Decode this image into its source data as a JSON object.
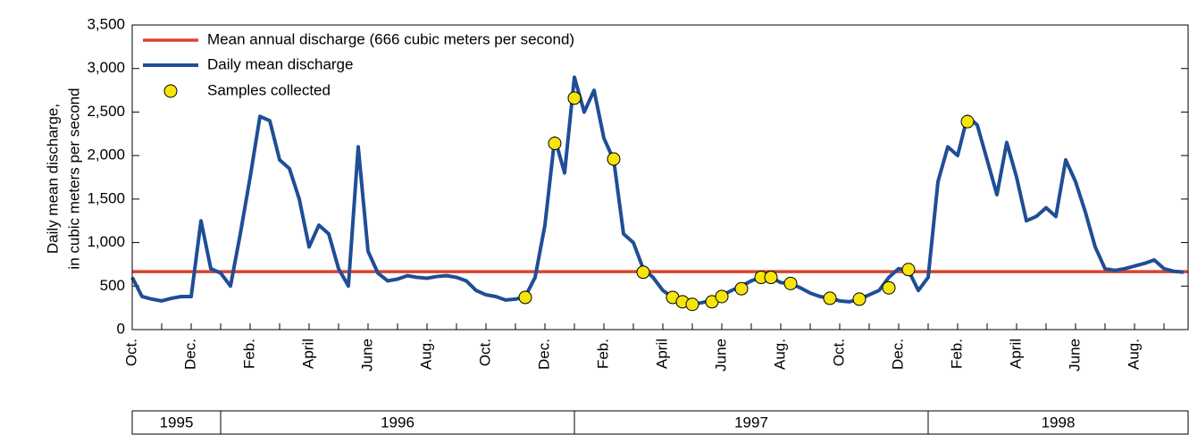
{
  "chart_data": {
    "type": "line",
    "ylabel": [
      "Daily mean discharge,",
      "in cubic meters per second"
    ],
    "ylim": [
      0,
      3500
    ],
    "yticks": [
      0,
      500,
      {
        "value": 1000,
        "label": "1,000"
      },
      {
        "value": 1500,
        "label": "1,500"
      },
      {
        "value": 2000,
        "label": "2,000"
      },
      {
        "value": 2500,
        "label": "2,500"
      },
      {
        "value": 3000,
        "label": "3,000"
      },
      {
        "value": 3500,
        "label": "3,500"
      }
    ],
    "legend": "upper left",
    "years": [
      "1995",
      "1996",
      "1997",
      "1998"
    ],
    "hline": {
      "name": "Mean annual discharge (666 cubic meters per second)",
      "value": 666,
      "color": "#d9432f"
    },
    "categories": [
      "Oct.",
      null,
      null,
      null,
      null,
      null,
      "Dec.",
      null,
      null,
      null,
      null,
      null,
      "Feb.",
      null,
      null,
      null,
      null,
      null,
      "April",
      null,
      null,
      null,
      null,
      null,
      "June",
      null,
      null,
      null,
      null,
      null,
      "Aug.",
      null,
      null,
      null,
      null,
      null,
      "Oct.",
      null,
      null,
      null,
      null,
      null,
      "Dec.",
      null,
      null,
      null,
      null,
      null,
      "Feb.",
      null,
      null,
      null,
      null,
      null,
      "April",
      null,
      null,
      null,
      null,
      null,
      "June",
      null,
      null,
      null,
      null,
      null,
      "Aug.",
      null,
      null,
      null,
      null,
      null,
      "Oct.",
      null,
      null,
      null,
      null,
      null,
      "Dec.",
      null,
      null,
      null,
      null,
      null,
      "Feb.",
      null,
      null,
      null,
      null,
      null,
      "April",
      null,
      null,
      null,
      null,
      null,
      "June",
      null,
      null,
      null,
      null,
      null,
      "Aug.",
      null,
      null,
      null,
      null,
      null
    ],
    "series": [
      {
        "name": "Daily mean discharge",
        "color": "#1f4e96",
        "values": [
          600,
          380,
          350,
          330,
          360,
          380,
          380,
          1250,
          700,
          650,
          500,
          1100,
          1750,
          2450,
          2400,
          1950,
          1850,
          1500,
          950,
          1200,
          1100,
          700,
          500,
          2100,
          900,
          650,
          560,
          580,
          620,
          600,
          590,
          610,
          620,
          600,
          560,
          450,
          400,
          380,
          340,
          350,
          380,
          600,
          1200,
          2200,
          1800,
          2900,
          2500,
          2750,
          2200,
          1950,
          1100,
          1000,
          700,
          600,
          450,
          370,
          320,
          290,
          310,
          340,
          390,
          450,
          500,
          560,
          600,
          600,
          540,
          530,
          480,
          420,
          380,
          360,
          330,
          320,
          350,
          400,
          450,
          600,
          700,
          680,
          450,
          600,
          1700,
          2100,
          2000,
          2450,
          2350,
          1950,
          1550,
          2150,
          1750,
          1250,
          1300,
          1400,
          1300,
          1950,
          1700,
          1350,
          950,
          700,
          680,
          700,
          730,
          760,
          800,
          700,
          670,
          660
        ]
      },
      {
        "name": "Samples collected",
        "type": "scatter",
        "color": "#f5e50a",
        "values": [
          null,
          null,
          null,
          null,
          null,
          null,
          null,
          null,
          null,
          null,
          null,
          null,
          null,
          null,
          null,
          null,
          null,
          null,
          null,
          null,
          null,
          null,
          null,
          null,
          null,
          null,
          null,
          null,
          null,
          null,
          null,
          null,
          null,
          null,
          null,
          null,
          null,
          null,
          null,
          null,
          370,
          null,
          null,
          2140,
          null,
          2660,
          null,
          null,
          null,
          1960,
          null,
          null,
          660,
          null,
          null,
          370,
          320,
          290,
          null,
          320,
          380,
          null,
          470,
          null,
          600,
          600,
          null,
          530,
          null,
          null,
          null,
          360,
          null,
          null,
          350,
          null,
          null,
          480,
          null,
          690,
          null,
          null,
          null,
          null,
          null,
          2390,
          null,
          null,
          null,
          null,
          null,
          null,
          null,
          null,
          null,
          null,
          null,
          null,
          null,
          null,
          null,
          null,
          null,
          null,
          null,
          null,
          null,
          null
        ]
      }
    ]
  }
}
